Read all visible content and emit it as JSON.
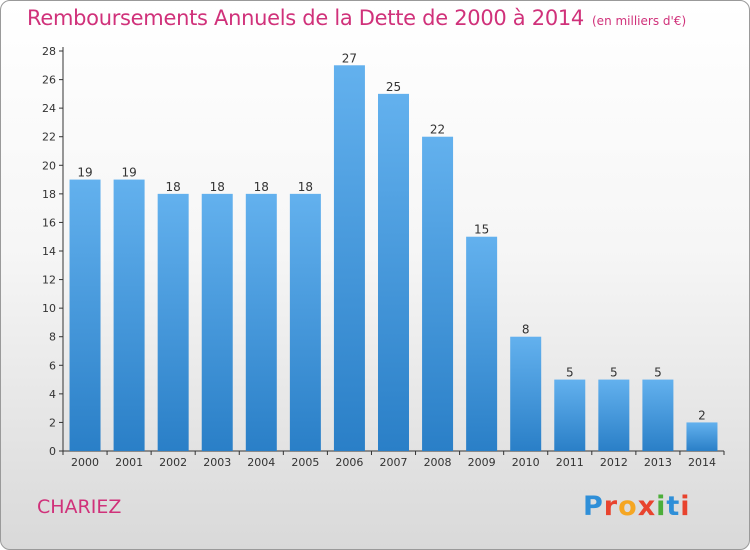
{
  "title": "Remboursements Annuels de la Dette de 2000 à 2014",
  "subtitle": "(en milliers d'€)",
  "town": "CHARIEZ",
  "logo": {
    "text": "Proxiti",
    "colors": [
      "#2f8fd8",
      "#e8432e",
      "#f5a623",
      "#e8432e",
      "#4cae3a",
      "#2f8fd8",
      "#e8432e"
    ]
  },
  "colors": {
    "title": "#d0317a",
    "bar_top": "#63b1ee",
    "bar_bottom": "#2a7fc7",
    "axis": "#333333"
  },
  "chart_data": {
    "type": "bar",
    "categories": [
      "2000",
      "2001",
      "2002",
      "2003",
      "2004",
      "2005",
      "2006",
      "2007",
      "2008",
      "2009",
      "2010",
      "2011",
      "2012",
      "2013",
      "2014"
    ],
    "values": [
      19,
      19,
      18,
      18,
      18,
      18,
      27,
      25,
      22,
      15,
      8,
      5,
      5,
      5,
      2
    ],
    "ylim": [
      0,
      28
    ],
    "yticks": [
      0,
      2,
      4,
      6,
      8,
      10,
      12,
      14,
      16,
      18,
      20,
      22,
      24,
      26,
      28
    ],
    "grid": false,
    "data_labels": true
  }
}
